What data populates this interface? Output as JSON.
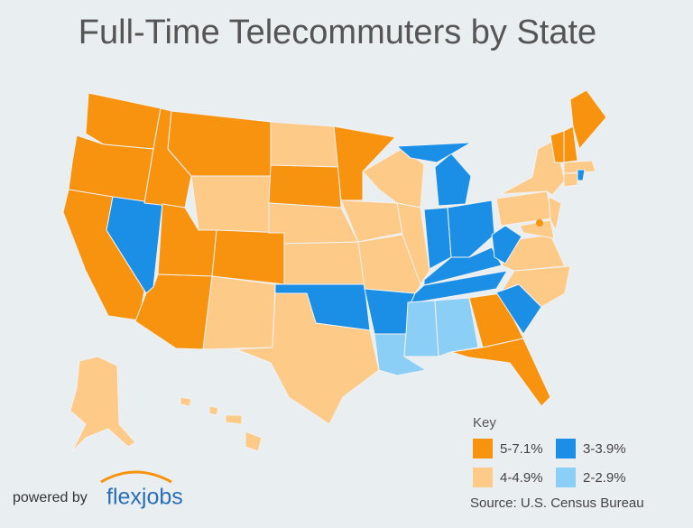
{
  "title": "Full-Time Telecommuters by State",
  "key": {
    "title": "Key",
    "items": [
      {
        "label": "5-7.1%",
        "color": "#f7930f"
      },
      {
        "label": "3-3.9%",
        "color": "#1b8fe6"
      },
      {
        "label": "4-4.9%",
        "color": "#fdca88"
      },
      {
        "label": "2-2.9%",
        "color": "#8ccff6"
      }
    ]
  },
  "source": "Source: U.S. Census Bureau",
  "powered_by": "powered by",
  "logo": "flexjobs"
}
